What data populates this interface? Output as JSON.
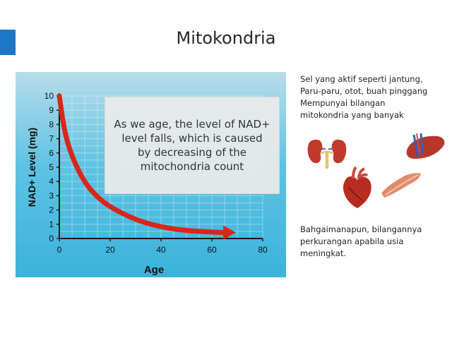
{
  "slide": {
    "title": "Mitokondria",
    "overlay_text": "As we age, the level of NAD+ level falls, which is caused by decreasing of the mitochondria count",
    "side_text_top": "Sel yang aktif seperti jantung,\nParu-paru, otot, buah pinggang\nMempunyai bilangan\nmitokondria yang banyak",
    "side_text_bottom": "Bahgaimanapun, bilangannya\nperkurangan apabila usia\nmeningkat.",
    "accent_color": "#1f76c9",
    "organ_icons": [
      "kidney-icon",
      "liver-icon",
      "heart-icon",
      "muscle-icon"
    ]
  },
  "chart_data": {
    "type": "line",
    "xlabel": "Age",
    "ylabel": "NAD+ Level (mg)",
    "xlim": [
      0,
      80
    ],
    "ylim": [
      0,
      10
    ],
    "xticks": [
      0,
      20,
      40,
      60,
      80
    ],
    "yticks": [
      0,
      1,
      2,
      3,
      4,
      5,
      6,
      7,
      8,
      9,
      10
    ],
    "grid": true,
    "series": [
      {
        "color": "#d9261c",
        "x": [
          0,
          2,
          5,
          10,
          15,
          20,
          30,
          40,
          50,
          60,
          65
        ],
        "y": [
          10,
          7.5,
          5.7,
          3.9,
          2.9,
          2.2,
          1.3,
          0.8,
          0.55,
          0.45,
          0.42
        ]
      }
    ]
  }
}
